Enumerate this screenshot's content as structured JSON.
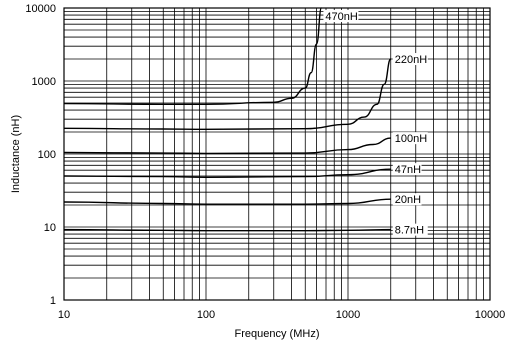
{
  "chart_data": {
    "type": "line",
    "xlabel": "Frequency (MHz)",
    "ylabel": "Inductance (nH)",
    "x_scale": "log",
    "y_scale": "log",
    "xlim": [
      10,
      10000
    ],
    "ylim": [
      1,
      10000
    ],
    "grid": true,
    "x_tick_labels": [
      "10",
      "100",
      "1000",
      "10000"
    ],
    "y_tick_labels": [
      "1",
      "10",
      "100",
      "1000",
      "10000"
    ],
    "series": [
      {
        "name": "8.7nH",
        "x": [
          10,
          50,
          100,
          500,
          1000,
          2000
        ],
        "y": [
          9.2,
          9.0,
          8.9,
          8.9,
          9.0,
          9.2
        ]
      },
      {
        "name": "20nH",
        "x": [
          10,
          50,
          100,
          500,
          1000,
          2000
        ],
        "y": [
          22,
          21,
          20.5,
          20.5,
          21,
          24
        ]
      },
      {
        "name": "47nH",
        "x": [
          10,
          50,
          100,
          500,
          1000,
          2000
        ],
        "y": [
          50,
          49,
          48,
          49,
          52,
          62
        ]
      },
      {
        "name": "100nH",
        "x": [
          10,
          50,
          100,
          500,
          1000,
          1500,
          2000
        ],
        "y": [
          105,
          103,
          102,
          103,
          115,
          135,
          165
        ]
      },
      {
        "name": "220nH",
        "x": [
          10,
          50,
          100,
          500,
          1000,
          1300,
          1600,
          1800,
          2000
        ],
        "y": [
          225,
          220,
          218,
          222,
          255,
          320,
          480,
          900,
          2000
        ]
      },
      {
        "name": "470nH",
        "x": [
          10,
          50,
          100,
          300,
          400,
          500,
          550,
          600,
          650
        ],
        "y": [
          490,
          480,
          480,
          510,
          580,
          800,
          1300,
          3200,
          10000
        ]
      }
    ]
  }
}
